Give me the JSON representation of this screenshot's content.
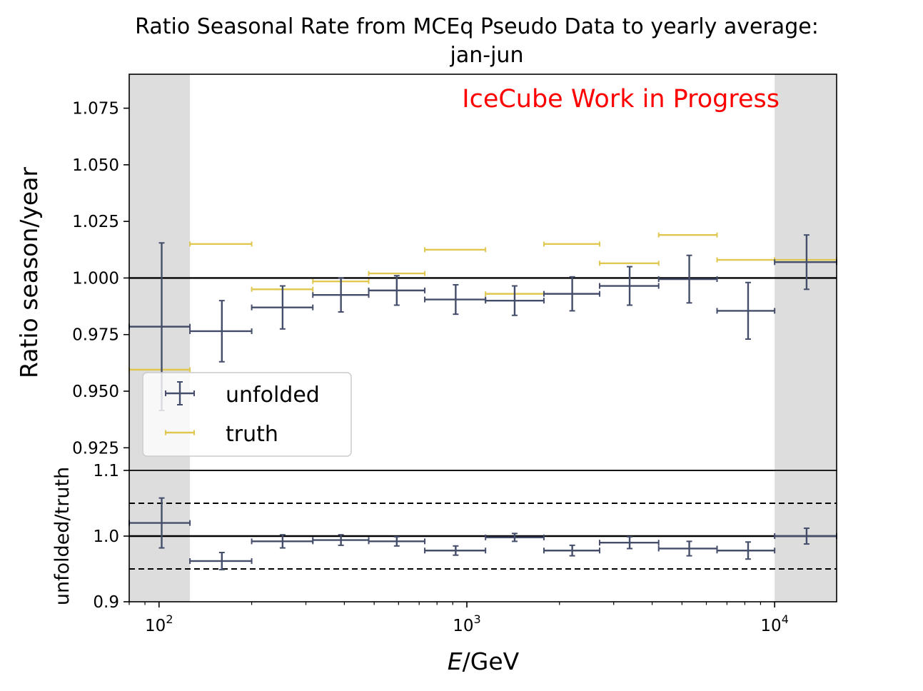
{
  "chart_data": {
    "type": "scatter",
    "title_line1": "Ratio Seasonal Rate from MCEq Pseudo Data to yearly average:",
    "title_line2": "jan-jun",
    "annotation": "IceCube Work in Progress",
    "annotation_color": "#ff0000",
    "xlabel_italic": "E",
    "xlabel_rest": "/GeV",
    "xscale": "log",
    "xlim": [
      80,
      15900
    ],
    "x_ticks": [
      {
        "value": 100,
        "base": "10",
        "exp": "2"
      },
      {
        "value": 1000,
        "base": "10",
        "exp": "3"
      },
      {
        "value": 10000,
        "base": "10",
        "exp": "4"
      }
    ],
    "shaded_regions": [
      [
        80,
        126
      ],
      [
        10000,
        15900
      ]
    ],
    "shade_color": "#dddddd",
    "top_panel": {
      "ylabel": "Ratio season/year",
      "ylim": [
        0.915,
        1.09
      ],
      "y_ticks": [
        "0.925",
        "0.950",
        "0.975",
        "1.000",
        "1.025",
        "1.050",
        "1.075"
      ],
      "reference_line": 1.0
    },
    "bottom_panel": {
      "ylabel": "unfolded/truth",
      "ylim": [
        0.9,
        1.1
      ],
      "y_ticks": [
        "0.9",
        "1.0",
        "1.1"
      ],
      "reference_line": 1.0,
      "dashed_lines": [
        1.05,
        0.95
      ]
    },
    "legend": {
      "position": "lower-left",
      "unfolded_label": "unfolded",
      "truth_label": "truth"
    },
    "series": [
      {
        "name": "unfolded",
        "color": "#444e6a",
        "bins": [
          [
            80,
            126
          ],
          [
            126,
            200
          ],
          [
            200,
            316
          ],
          [
            316,
            480
          ],
          [
            480,
            730
          ],
          [
            730,
            1150
          ],
          [
            1150,
            1780
          ],
          [
            1780,
            2700
          ],
          [
            2700,
            4200
          ],
          [
            4200,
            6500
          ],
          [
            6500,
            10000
          ],
          [
            10000,
            15900
          ]
        ],
        "x": [
          102,
          160,
          252,
          390,
          592,
          920,
          1430,
          2200,
          3380,
          5280,
          8200,
          12700
        ],
        "y": [
          0.9785,
          0.9765,
          0.987,
          0.9925,
          0.9945,
          0.9905,
          0.99,
          0.993,
          0.9965,
          0.9995,
          0.9855,
          1.007
        ],
        "yerr": [
          0.037,
          0.0135,
          0.0095,
          0.0075,
          0.0065,
          0.0065,
          0.0065,
          0.0075,
          0.0085,
          0.0105,
          0.0125,
          0.012
        ]
      },
      {
        "name": "truth",
        "color": "#e0c850",
        "bins": [
          [
            80,
            126
          ],
          [
            126,
            200
          ],
          [
            200,
            316
          ],
          [
            316,
            480
          ],
          [
            480,
            730
          ],
          [
            730,
            1150
          ],
          [
            1150,
            1780
          ],
          [
            1780,
            2700
          ],
          [
            2700,
            4200
          ],
          [
            4200,
            6500
          ],
          [
            6500,
            10000
          ],
          [
            10000,
            15900
          ]
        ],
        "y": [
          0.9595,
          1.015,
          0.995,
          0.9985,
          1.002,
          1.0125,
          0.993,
          1.015,
          1.0065,
          1.019,
          1.008,
          1.008
        ]
      },
      {
        "name": "unfolded/truth",
        "color": "#444e6a",
        "bins": [
          [
            80,
            126
          ],
          [
            126,
            200
          ],
          [
            200,
            316
          ],
          [
            316,
            480
          ],
          [
            480,
            730
          ],
          [
            730,
            1150
          ],
          [
            1150,
            1780
          ],
          [
            1780,
            2700
          ],
          [
            2700,
            4200
          ],
          [
            4200,
            6500
          ],
          [
            6500,
            10000
          ],
          [
            10000,
            15900
          ]
        ],
        "x": [
          102,
          160,
          252,
          390,
          592,
          920,
          1430,
          2200,
          3380,
          5280,
          8200,
          12700
        ],
        "y": [
          1.02,
          0.962,
          0.992,
          0.994,
          0.992,
          0.978,
          0.998,
          0.978,
          0.99,
          0.981,
          0.978,
          1.0
        ],
        "yerr": [
          0.038,
          0.013,
          0.01,
          0.008,
          0.007,
          0.007,
          0.006,
          0.008,
          0.009,
          0.011,
          0.013,
          0.012
        ]
      }
    ]
  }
}
